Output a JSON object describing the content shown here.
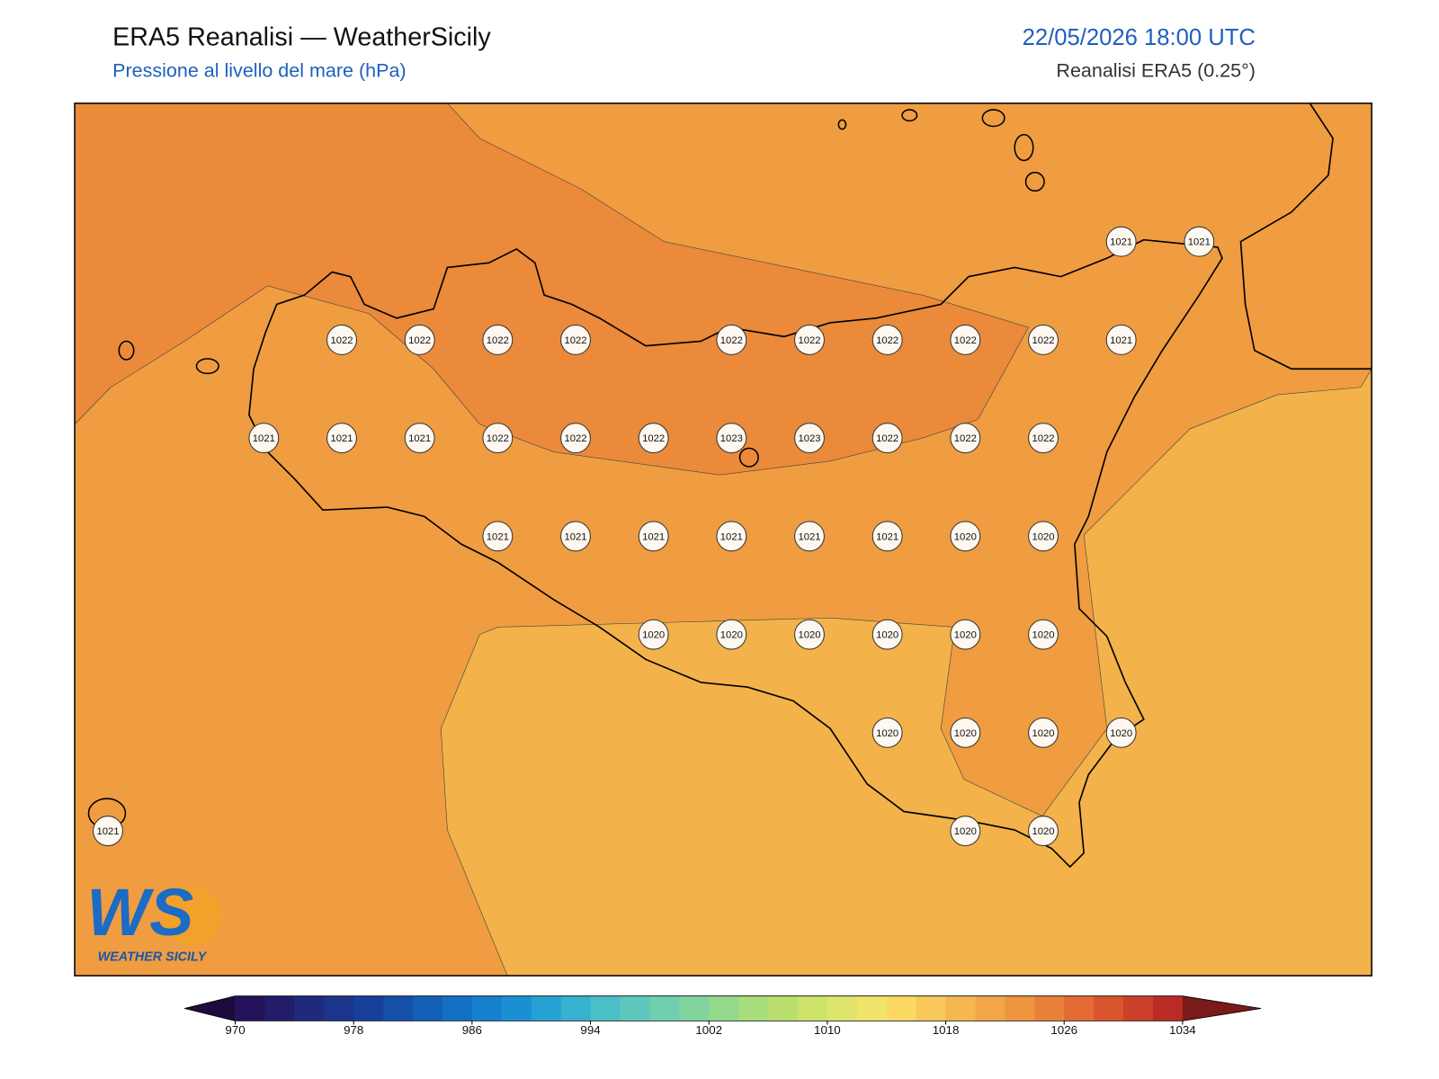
{
  "header": {
    "title": "ERA5 Reanalisi — WeatherSicily",
    "subtitle": "Pressione al livello del mare (hPa)",
    "datetime": "22/05/2026 18:00 UTC",
    "source": "Reanalisi ERA5 (0.25°)"
  },
  "map": {
    "station_rows": [
      [
        null,
        null,
        null,
        null,
        null,
        null,
        null,
        null,
        null,
        null,
        null,
        null,
        null,
        1021,
        1021
      ],
      [
        null,
        null,
        null,
        1022,
        1022,
        1022,
        1022,
        null,
        1022,
        1022,
        1022,
        1022,
        1022,
        1021,
        null
      ],
      [
        null,
        null,
        1021,
        1021,
        1021,
        1022,
        1022,
        1022,
        1023,
        1023,
        1022,
        1022,
        1022,
        null,
        null
      ],
      [
        null,
        null,
        null,
        null,
        null,
        1021,
        1021,
        1021,
        1021,
        1021,
        1021,
        1020,
        1020,
        null,
        null
      ],
      [
        null,
        null,
        null,
        null,
        null,
        null,
        null,
        1020,
        1020,
        1020,
        1020,
        1020,
        1020,
        null,
        null
      ],
      [
        null,
        null,
        null,
        null,
        null,
        null,
        null,
        null,
        null,
        null,
        1020,
        1020,
        1020,
        1020,
        null
      ],
      [
        1021,
        null,
        null,
        null,
        null,
        null,
        null,
        null,
        null,
        null,
        null,
        1020,
        1020,
        null,
        null
      ]
    ]
  },
  "colorbar": {
    "ticks": [
      970,
      978,
      986,
      994,
      1002,
      1010,
      1018,
      1026,
      1034
    ],
    "colors": [
      "#25125b",
      "#221c6b",
      "#1f2a7c",
      "#1b358c",
      "#17409a",
      "#1550a8",
      "#1460b6",
      "#1370c4",
      "#1580ce",
      "#1a90d2",
      "#26a1d4",
      "#37b1d0",
      "#4bbfc8",
      "#5ec8bd",
      "#6fcfae",
      "#82d49e",
      "#95d98d",
      "#a8dd7d",
      "#badf6e",
      "#cde36a",
      "#dfe56c",
      "#f0e46a",
      "#fbd963",
      "#f8c85a",
      "#f5b850",
      "#f2a647",
      "#ee9540",
      "#ea813a",
      "#e46b34",
      "#d9552e",
      "#cc3f29",
      "#bb2b26"
    ],
    "under_color": "#1e0b3d",
    "over_color": "#7a1a1a"
  },
  "logo": {
    "mark": "WS",
    "text": "WEATHER SICILY"
  }
}
